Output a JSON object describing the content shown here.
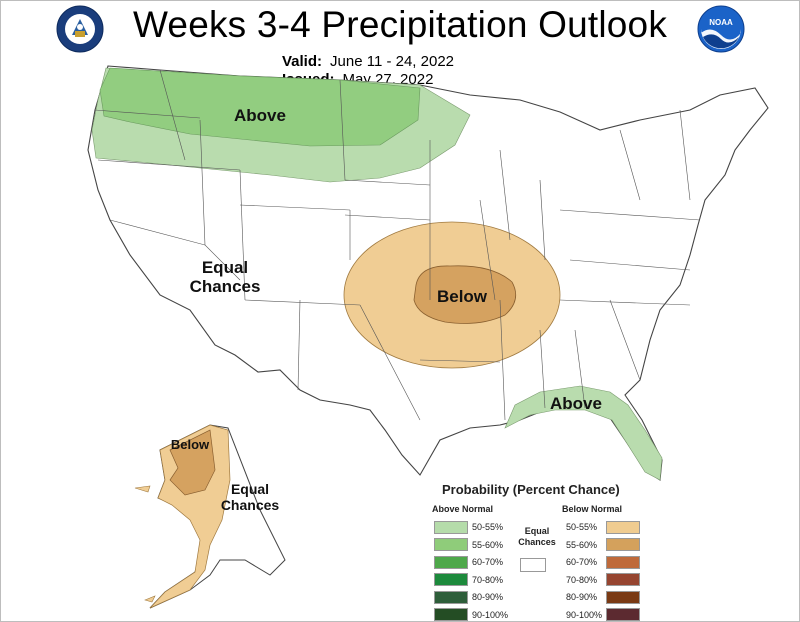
{
  "title": "Weeks 3-4 Precipitation Outlook",
  "valid_label": "Valid:",
  "valid_value": "June 11 - 24, 2022",
  "issued_label": "Issued:",
  "issued_value": "May 27, 2022",
  "logos": {
    "left": "doc-seal",
    "right": "NOAA"
  },
  "regions": {
    "above_north": "Above",
    "equal_west_1": "Equal",
    "equal_west_2": "Chances",
    "below_central": "Below",
    "above_southeast": "Above",
    "below_alaska": "Below",
    "equal_alaska_1": "Equal",
    "equal_alaska_2": "Chances"
  },
  "legend": {
    "title": "Probability (Percent Chance)",
    "above_heading": "Above Normal",
    "below_heading": "Below Normal",
    "equal_line1": "Equal",
    "equal_line2": "Chances",
    "above": [
      {
        "label": "50-55%",
        "color": "#b5dcaa"
      },
      {
        "label": "55-60%",
        "color": "#8fcc7a"
      },
      {
        "label": "60-70%",
        "color": "#4ea84a"
      },
      {
        "label": "70-80%",
        "color": "#1d8a3c"
      },
      {
        "label": "80-90%",
        "color": "#2e5e3a"
      },
      {
        "label": "90-100%",
        "color": "#244d24"
      }
    ],
    "below": [
      {
        "label": "50-55%",
        "color": "#f0cc90"
      },
      {
        "label": "55-60%",
        "color": "#d4a15c"
      },
      {
        "label": "60-70%",
        "color": "#bf6a3a"
      },
      {
        "label": "70-80%",
        "color": "#964530"
      },
      {
        "label": "80-90%",
        "color": "#7a3a14"
      },
      {
        "label": "90-100%",
        "color": "#5c2a30"
      }
    ]
  },
  "colors": {
    "above_light": "#b9dcae",
    "above_mid": "#92cd80",
    "below_light": "#f0cd94",
    "below_mid": "#d5a260",
    "borders": "#555555"
  }
}
